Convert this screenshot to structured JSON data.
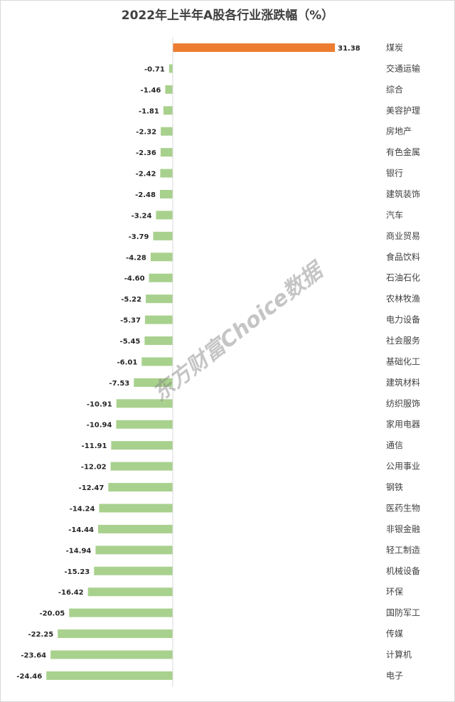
{
  "chart_data": {
    "type": "bar",
    "orientation": "horizontal",
    "title": "2022年上半年A股各行业涨跌幅（%）",
    "categories": [
      "煤炭",
      "交通运输",
      "综合",
      "美容护理",
      "房地产",
      "有色金属",
      "银行",
      "建筑装饰",
      "汽车",
      "商业贸易",
      "食品饮料",
      "石油石化",
      "农林牧渔",
      "电力设备",
      "社会服务",
      "基础化工",
      "建筑材料",
      "纺织服饰",
      "家用电器",
      "通信",
      "公用事业",
      "钢铁",
      "医药生物",
      "非银金融",
      "轻工制造",
      "机械设备",
      "环保",
      "国防军工",
      "传媒",
      "计算机",
      "电子"
    ],
    "values": [
      31.38,
      -0.71,
      -1.46,
      -1.81,
      -2.32,
      -2.36,
      -2.42,
      -2.48,
      -3.24,
      -3.79,
      -4.28,
      -4.6,
      -5.22,
      -5.37,
      -5.45,
      -6.01,
      -7.53,
      -10.91,
      -10.94,
      -11.91,
      -12.02,
      -12.47,
      -14.24,
      -14.44,
      -14.94,
      -15.23,
      -16.42,
      -20.05,
      -22.25,
      -23.64,
      -24.46
    ],
    "value_labels": [
      "31.38",
      "-0.71",
      "-1.46",
      "-1.81",
      "-2.32",
      "-2.36",
      "-2.42",
      "-2.48",
      "-3.24",
      "-3.79",
      "-4.28",
      "-4.60",
      "-5.22",
      "-5.37",
      "-5.45",
      "-6.01",
      "-7.53",
      "-10.91",
      "-10.94",
      "-11.91",
      "-12.02",
      "-12.47",
      "-14.24",
      "-14.44",
      "-14.94",
      "-15.23",
      "-16.42",
      "-20.05",
      "-22.25",
      "-23.64",
      "-24.46"
    ],
    "xlim": [
      -24.46,
      31.38
    ],
    "grid": false,
    "legend": "none",
    "colors": {
      "positive": "#ed7d31",
      "negative": "#a9d18e",
      "axis": "#d9d9d9"
    }
  },
  "watermark": "东方财富Choice数据"
}
